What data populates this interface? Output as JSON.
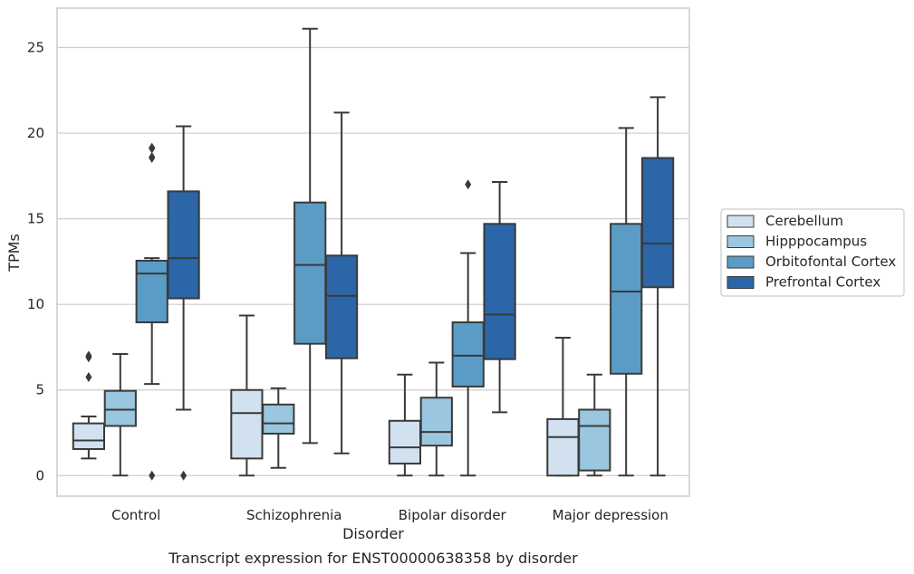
{
  "chart_data": {
    "type": "box",
    "xlabel": "Disorder",
    "ylabel": "TPMs",
    "caption": "Transcript expression for ENST00000638358 by disorder",
    "ylim": [
      -1.2,
      27.3
    ],
    "yticks": [
      "0",
      "5",
      "10",
      "15",
      "20",
      "25"
    ],
    "grid": true,
    "legend_position": "right",
    "categories": [
      "Control",
      "Schizophrenia",
      "Bipolar disorder",
      "Major depression"
    ],
    "series": [
      {
        "name": "Cerebellum",
        "color": "#d1e1f0",
        "boxes": [
          {
            "whisker_low": 1.0,
            "q1": 1.55,
            "median": 2.05,
            "q3": 3.05,
            "whisker_high": 3.45,
            "outliers": [
              5.75,
              6.9,
              7.0
            ]
          },
          {
            "whisker_low": 0.0,
            "q1": 1.0,
            "median": 3.65,
            "q3": 5.0,
            "whisker_high": 9.35,
            "outliers": []
          },
          {
            "whisker_low": 0.0,
            "q1": 0.7,
            "median": 1.65,
            "q3": 3.2,
            "whisker_high": 5.9,
            "outliers": []
          },
          {
            "whisker_low": 0.0,
            "q1": 0.0,
            "median": 2.25,
            "q3": 3.3,
            "whisker_high": 8.05,
            "outliers": []
          }
        ]
      },
      {
        "name": "Hipppocampus",
        "color": "#9ac6df",
        "boxes": [
          {
            "whisker_low": 0.0,
            "q1": 2.9,
            "median": 3.85,
            "q3": 4.95,
            "whisker_high": 7.1,
            "outliers": []
          },
          {
            "whisker_low": 0.45,
            "q1": 2.45,
            "median": 3.05,
            "q3": 4.15,
            "whisker_high": 5.1,
            "outliers": []
          },
          {
            "whisker_low": 0.0,
            "q1": 1.75,
            "median": 2.55,
            "q3": 4.55,
            "whisker_high": 6.6,
            "outliers": []
          },
          {
            "whisker_low": 0.0,
            "q1": 0.3,
            "median": 2.9,
            "q3": 3.85,
            "whisker_high": 5.9,
            "outliers": []
          }
        ]
      },
      {
        "name": "Orbitofontal Cortex",
        "color": "#5b9cc7",
        "boxes": [
          {
            "whisker_low": 5.35,
            "q1": 8.95,
            "median": 11.8,
            "q3": 12.55,
            "whisker_high": 12.7,
            "outliers": [
              0.0,
              18.55,
              18.6,
              19.1,
              19.15
            ]
          },
          {
            "whisker_low": 1.9,
            "q1": 7.7,
            "median": 12.3,
            "q3": 15.95,
            "whisker_high": 26.1,
            "outliers": []
          },
          {
            "whisker_low": 0.0,
            "q1": 5.2,
            "median": 7.0,
            "q3": 8.95,
            "whisker_high": 13.0,
            "outliers": [
              17.0
            ]
          },
          {
            "whisker_low": 0.0,
            "q1": 5.95,
            "median": 10.75,
            "q3": 14.7,
            "whisker_high": 20.3,
            "outliers": []
          }
        ]
      },
      {
        "name": "Prefrontal Cortex",
        "color": "#2a66a8",
        "boxes": [
          {
            "whisker_low": 3.85,
            "q1": 10.35,
            "median": 12.7,
            "q3": 16.6,
            "whisker_high": 20.4,
            "outliers": [
              0.0
            ]
          },
          {
            "whisker_low": 1.3,
            "q1": 6.85,
            "median": 10.5,
            "q3": 12.85,
            "whisker_high": 21.2,
            "outliers": []
          },
          {
            "whisker_low": 3.7,
            "q1": 6.8,
            "median": 9.4,
            "q3": 14.7,
            "whisker_high": 17.15,
            "outliers": []
          },
          {
            "whisker_low": 0.0,
            "q1": 11.0,
            "median": 13.55,
            "q3": 18.55,
            "whisker_high": 22.1,
            "outliers": []
          }
        ]
      }
    ]
  }
}
